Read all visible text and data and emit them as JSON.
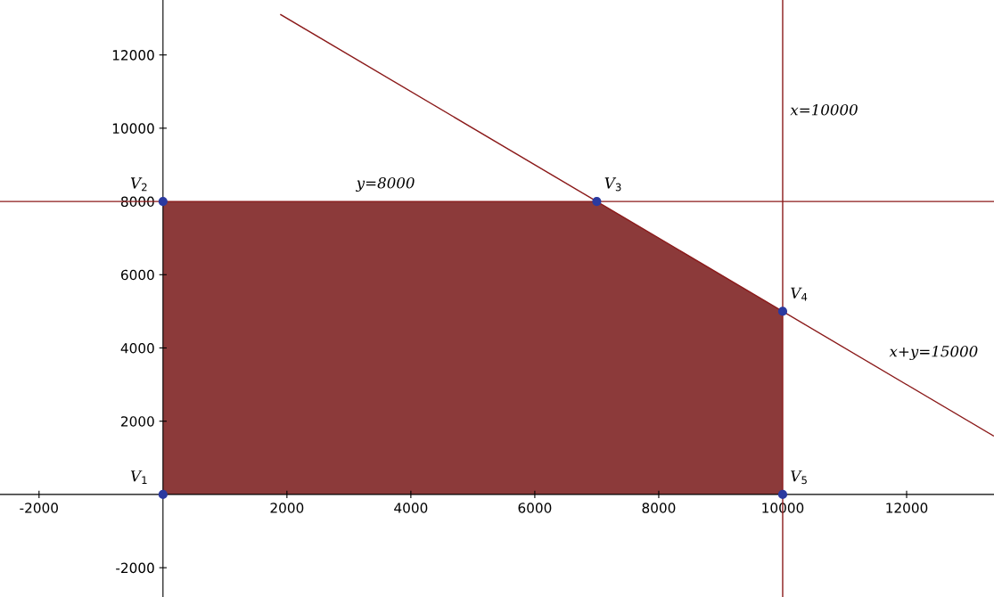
{
  "chart_data": {
    "type": "line",
    "xlim": [
      -2630,
      13410
    ],
    "ylim": [
      -2800,
      13500
    ],
    "xticks": [
      -2000,
      2000,
      4000,
      6000,
      8000,
      10000,
      12000
    ],
    "yticks": [
      -2000,
      2000,
      4000,
      6000,
      8000,
      10000,
      12000
    ],
    "grid": false,
    "legend": false,
    "series": [
      {
        "type": "area",
        "color": "#8c3a3a",
        "x": [
          0,
          7000,
          10000
        ],
        "values": [
          8000,
          8000,
          5000
        ]
      },
      {
        "type": "line",
        "color": "#8b1a1a",
        "x": [
          -2630,
          13410
        ],
        "values": [
          8000,
          8000
        ]
      },
      {
        "type": "line",
        "color": "#8b1a1a",
        "x": [
          1900,
          13400
        ],
        "values": [
          13100,
          1600
        ]
      },
      {
        "type": "line",
        "color": "#8b1a1a",
        "x": [
          10000,
          10000
        ],
        "values": [
          -2800,
          13500
        ]
      },
      {
        "type": "scatter",
        "color": "#2b3aa0",
        "marker": "circle",
        "x": [
          0,
          0,
          7000,
          10000,
          10000
        ],
        "values": [
          0,
          8000,
          8000,
          5000,
          0
        ]
      }
    ],
    "annotations": [
      {
        "text": "V$_{1}$",
        "x": 0,
        "y": 0
      },
      {
        "text": "V$_{2}$",
        "x": 0,
        "y": 8000
      },
      {
        "text": "V$_{3}$",
        "x": 7000,
        "y": 8000
      },
      {
        "text": "V$_{4}$",
        "x": 10000,
        "y": 5000
      },
      {
        "text": "V$_{5}$",
        "x": 10000,
        "y": 0
      },
      {
        "text": "y=8000",
        "x": 3000,
        "y": 8000
      },
      {
        "text": "x=10000",
        "x": 10000,
        "y": 10000
      },
      {
        "text": "x+y=15000",
        "x": 11600,
        "y": 3400
      }
    ]
  }
}
